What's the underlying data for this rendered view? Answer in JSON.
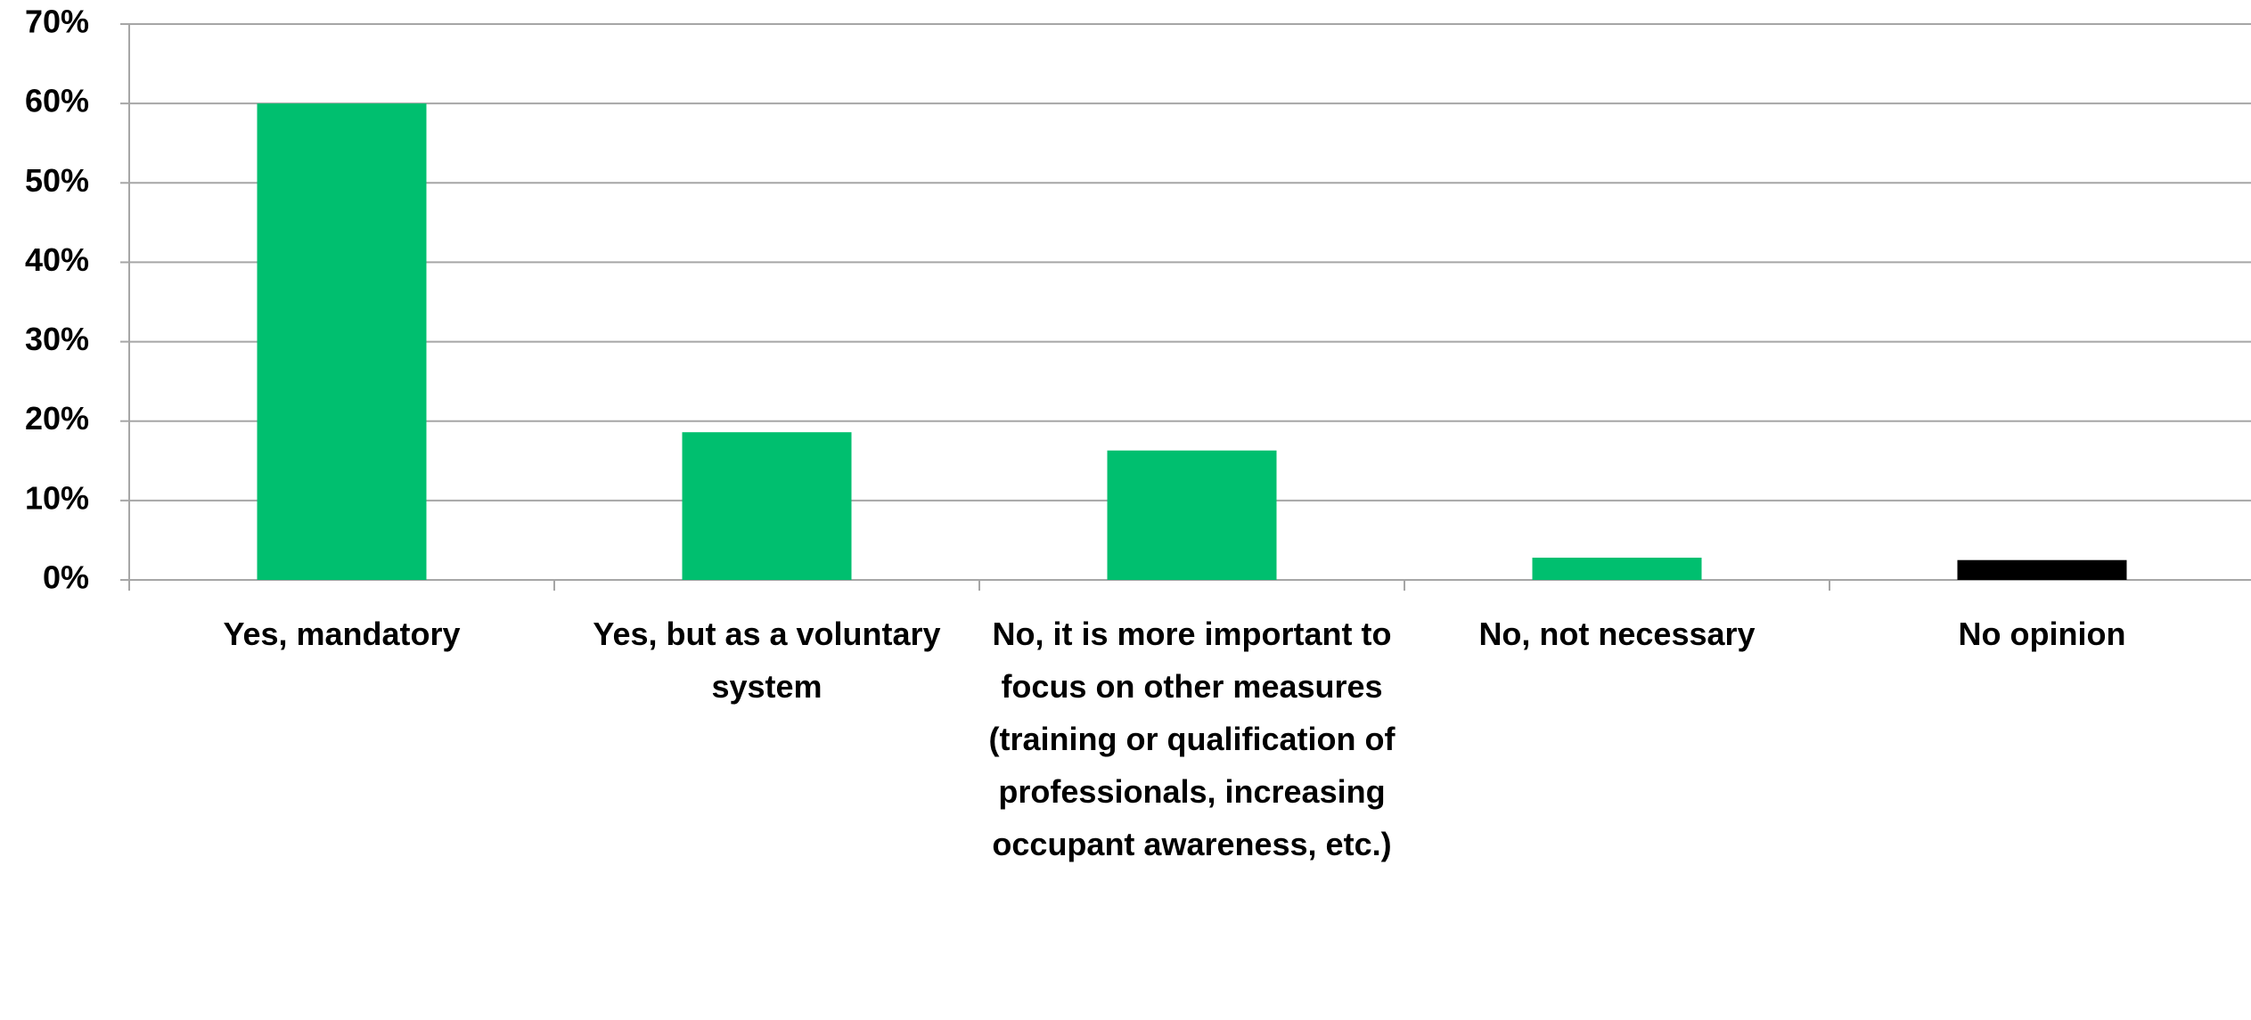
{
  "chart_data": {
    "type": "bar",
    "categories": [
      "Yes, mandatory",
      "Yes, but as a voluntary system",
      "No, it is more important to focus on other measures (training or qualification of professionals, increasing occupant awareness, etc.)",
      "No, not necessary",
      "No opinion"
    ],
    "values": [
      60,
      18.6,
      16.3,
      2.8,
      2.5
    ],
    "colors": [
      "#00bf6f",
      "#00bf6f",
      "#00bf6f",
      "#00bf6f",
      "#000000"
    ],
    "ylim": [
      0,
      70
    ],
    "yticks": [
      {
        "value": 0,
        "label": "0%"
      },
      {
        "value": 10,
        "label": "10%"
      },
      {
        "value": 20,
        "label": "20%"
      },
      {
        "value": 30,
        "label": "30%"
      },
      {
        "value": 40,
        "label": "40%"
      },
      {
        "value": 50,
        "label": "50%"
      },
      {
        "value": 60,
        "label": "60%"
      },
      {
        "value": 70,
        "label": "70%"
      }
    ],
    "grid": true
  }
}
